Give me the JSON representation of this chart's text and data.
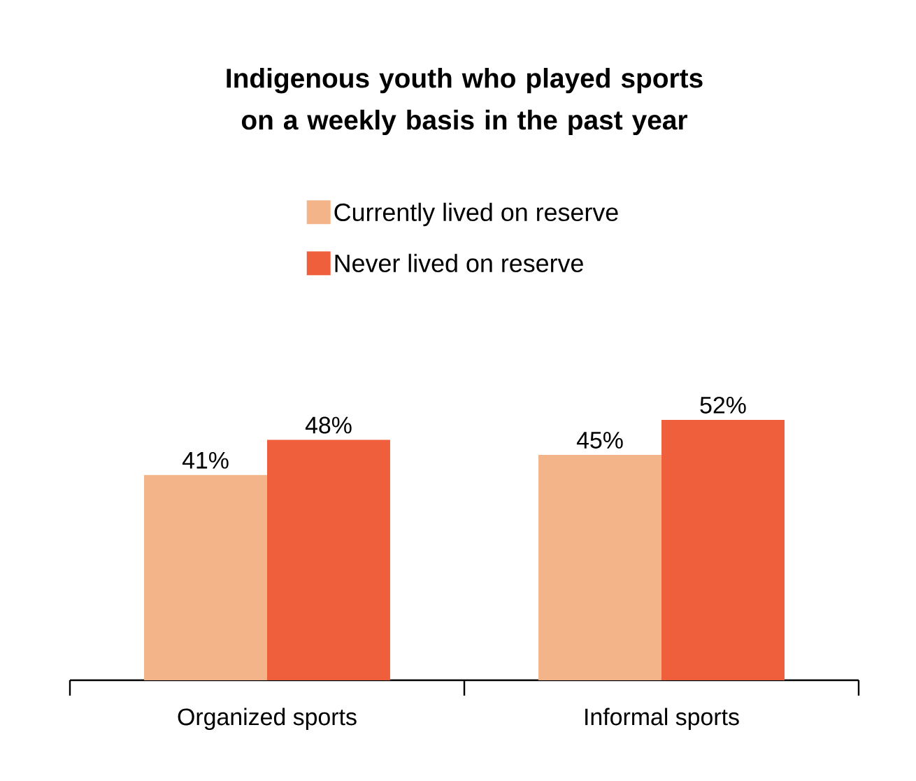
{
  "chart_data": {
    "type": "bar",
    "title": "Indigenous youth who played sports on a weekly basis in the past year",
    "categories": [
      "Organized sports",
      "Informal sports"
    ],
    "series": [
      {
        "name": "Currently lived on reserve",
        "color": "#f4b489",
        "values": [
          41,
          45
        ],
        "value_labels": [
          "41%",
          "45%"
        ]
      },
      {
        "name": "Never lived on reserve",
        "color": "#f05f3c",
        "values": [
          48,
          52
        ],
        "value_labels": [
          "48%",
          "52%"
        ]
      }
    ],
    "legend": "top",
    "grid": false
  }
}
